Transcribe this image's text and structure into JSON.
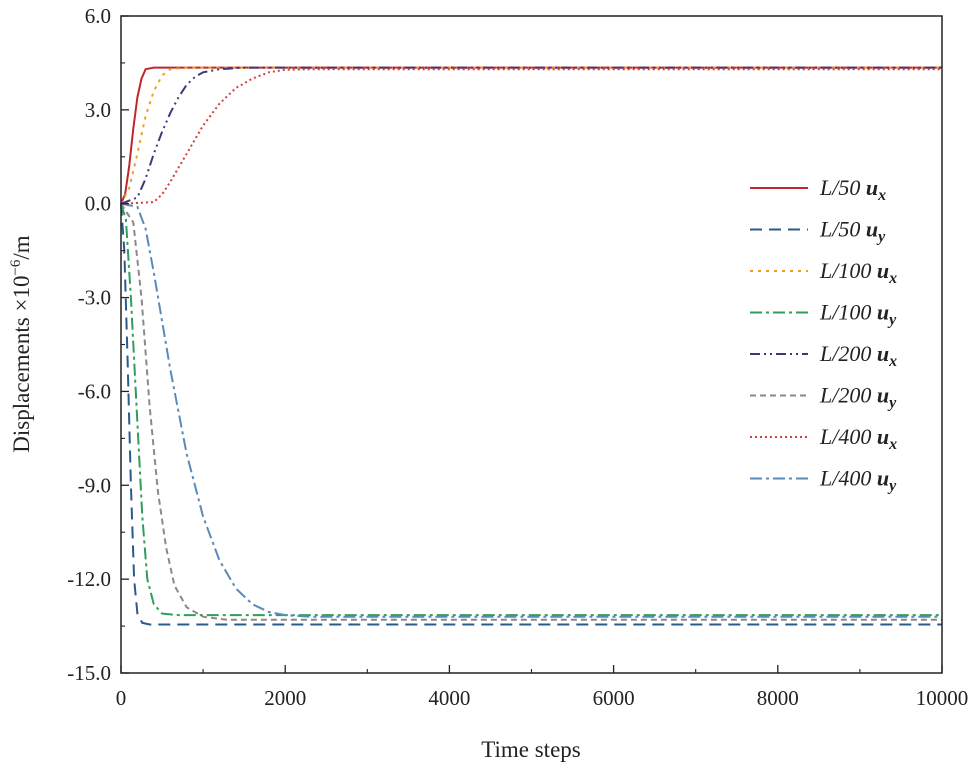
{
  "chart_data": {
    "type": "line",
    "xlabel": "Time steps",
    "ylabel": "Displacements ×10",
    "ylabel_exp": "−6",
    "ylabel_unit": "/m",
    "xlim": [
      0,
      10000
    ],
    "ylim": [
      -15,
      6
    ],
    "xticks": [
      0,
      2000,
      4000,
      6000,
      8000,
      10000
    ],
    "xtick_labels": [
      "0",
      "2000",
      "4000",
      "6000",
      "8000",
      "10000"
    ],
    "yticks": [
      6,
      3,
      0,
      -3,
      -6,
      -9,
      -12,
      -15
    ],
    "ytick_labels": [
      "6.0",
      "3.0",
      "0.0",
      "-3.0",
      "-6.0",
      "-9.0",
      "-12.0",
      "-15.0"
    ],
    "grid": false,
    "legend_position": "right",
    "series": [
      {
        "name": "L/50",
        "component": "u",
        "sub": "x",
        "color": "#c0262d",
        "dash": "",
        "final": 4.35,
        "points": [
          [
            0,
            0
          ],
          [
            50,
            0.3
          ],
          [
            100,
            1.2
          ],
          [
            150,
            2.4
          ],
          [
            200,
            3.4
          ],
          [
            250,
            4.0
          ],
          [
            300,
            4.3
          ],
          [
            400,
            4.35
          ],
          [
            10000,
            4.35
          ]
        ]
      },
      {
        "name": "L/50",
        "component": "u",
        "sub": "y",
        "color": "#2a5a8c",
        "dash": "12,7",
        "final": -13.45,
        "points": [
          [
            0,
            0
          ],
          [
            40,
            -1.5
          ],
          [
            80,
            -5
          ],
          [
            120,
            -9
          ],
          [
            160,
            -12
          ],
          [
            200,
            -13.1
          ],
          [
            260,
            -13.4
          ],
          [
            350,
            -13.45
          ],
          [
            10000,
            -13.45
          ]
        ]
      },
      {
        "name": "L/100",
        "component": "u",
        "sub": "x",
        "color": "#f0a020",
        "dash": "3,5",
        "final": 4.35,
        "points": [
          [
            0,
            0
          ],
          [
            100,
            0.5
          ],
          [
            200,
            1.6
          ],
          [
            300,
            2.8
          ],
          [
            400,
            3.6
          ],
          [
            500,
            4.1
          ],
          [
            600,
            4.3
          ],
          [
            800,
            4.35
          ],
          [
            10000,
            4.35
          ]
        ]
      },
      {
        "name": "L/100",
        "component": "u",
        "sub": "y",
        "color": "#2e9e5a",
        "dash": "12,4,3,4",
        "final": -13.15,
        "points": [
          [
            0,
            0
          ],
          [
            60,
            -0.5
          ],
          [
            120,
            -3
          ],
          [
            200,
            -7
          ],
          [
            260,
            -10
          ],
          [
            320,
            -12
          ],
          [
            400,
            -12.8
          ],
          [
            500,
            -13.1
          ],
          [
            700,
            -13.15
          ],
          [
            10000,
            -13.15
          ]
        ]
      },
      {
        "name": "L/200",
        "component": "u",
        "sub": "x",
        "color": "#3a3a7a",
        "dash": "10,4,2,4,2,4",
        "final": 4.35,
        "points": [
          [
            0,
            0
          ],
          [
            200,
            0.2
          ],
          [
            300,
            0.8
          ],
          [
            400,
            1.6
          ],
          [
            500,
            2.3
          ],
          [
            600,
            2.9
          ],
          [
            700,
            3.4
          ],
          [
            800,
            3.8
          ],
          [
            900,
            4.05
          ],
          [
            1000,
            4.2
          ],
          [
            1200,
            4.3
          ],
          [
            1500,
            4.35
          ],
          [
            10000,
            4.35
          ]
        ]
      },
      {
        "name": "L/200",
        "component": "u",
        "sub": "y",
        "color": "#8a8a8a",
        "dash": "6,4",
        "final": -13.3,
        "points": [
          [
            0,
            0
          ],
          [
            150,
            -0.6
          ],
          [
            250,
            -3
          ],
          [
            350,
            -6.5
          ],
          [
            450,
            -9.2
          ],
          [
            550,
            -11
          ],
          [
            650,
            -12.2
          ],
          [
            800,
            -12.9
          ],
          [
            1000,
            -13.2
          ],
          [
            1300,
            -13.3
          ],
          [
            10000,
            -13.3
          ]
        ]
      },
      {
        "name": "L/400",
        "component": "u",
        "sub": "x",
        "color": "#d04040",
        "dash": "2,3",
        "final": 4.3,
        "points": [
          [
            0,
            0
          ],
          [
            400,
            0.05
          ],
          [
            500,
            0.3
          ],
          [
            600,
            0.7
          ],
          [
            800,
            1.6
          ],
          [
            1000,
            2.5
          ],
          [
            1200,
            3.2
          ],
          [
            1400,
            3.7
          ],
          [
            1600,
            4.0
          ],
          [
            1800,
            4.2
          ],
          [
            2000,
            4.28
          ],
          [
            2300,
            4.3
          ],
          [
            10000,
            4.3
          ]
        ]
      },
      {
        "name": "L/400",
        "component": "u",
        "sub": "y",
        "color": "#5a8ab8",
        "dash": "12,4,3,4",
        "final": -13.2,
        "points": [
          [
            0,
            0
          ],
          [
            200,
            -0.1
          ],
          [
            300,
            -0.8
          ],
          [
            400,
            -2.2
          ],
          [
            600,
            -5.3
          ],
          [
            800,
            -8
          ],
          [
            1000,
            -10
          ],
          [
            1200,
            -11.4
          ],
          [
            1400,
            -12.3
          ],
          [
            1600,
            -12.8
          ],
          [
            1800,
            -13.05
          ],
          [
            2000,
            -13.15
          ],
          [
            2300,
            -13.2
          ],
          [
            10000,
            -13.2
          ]
        ]
      }
    ]
  }
}
